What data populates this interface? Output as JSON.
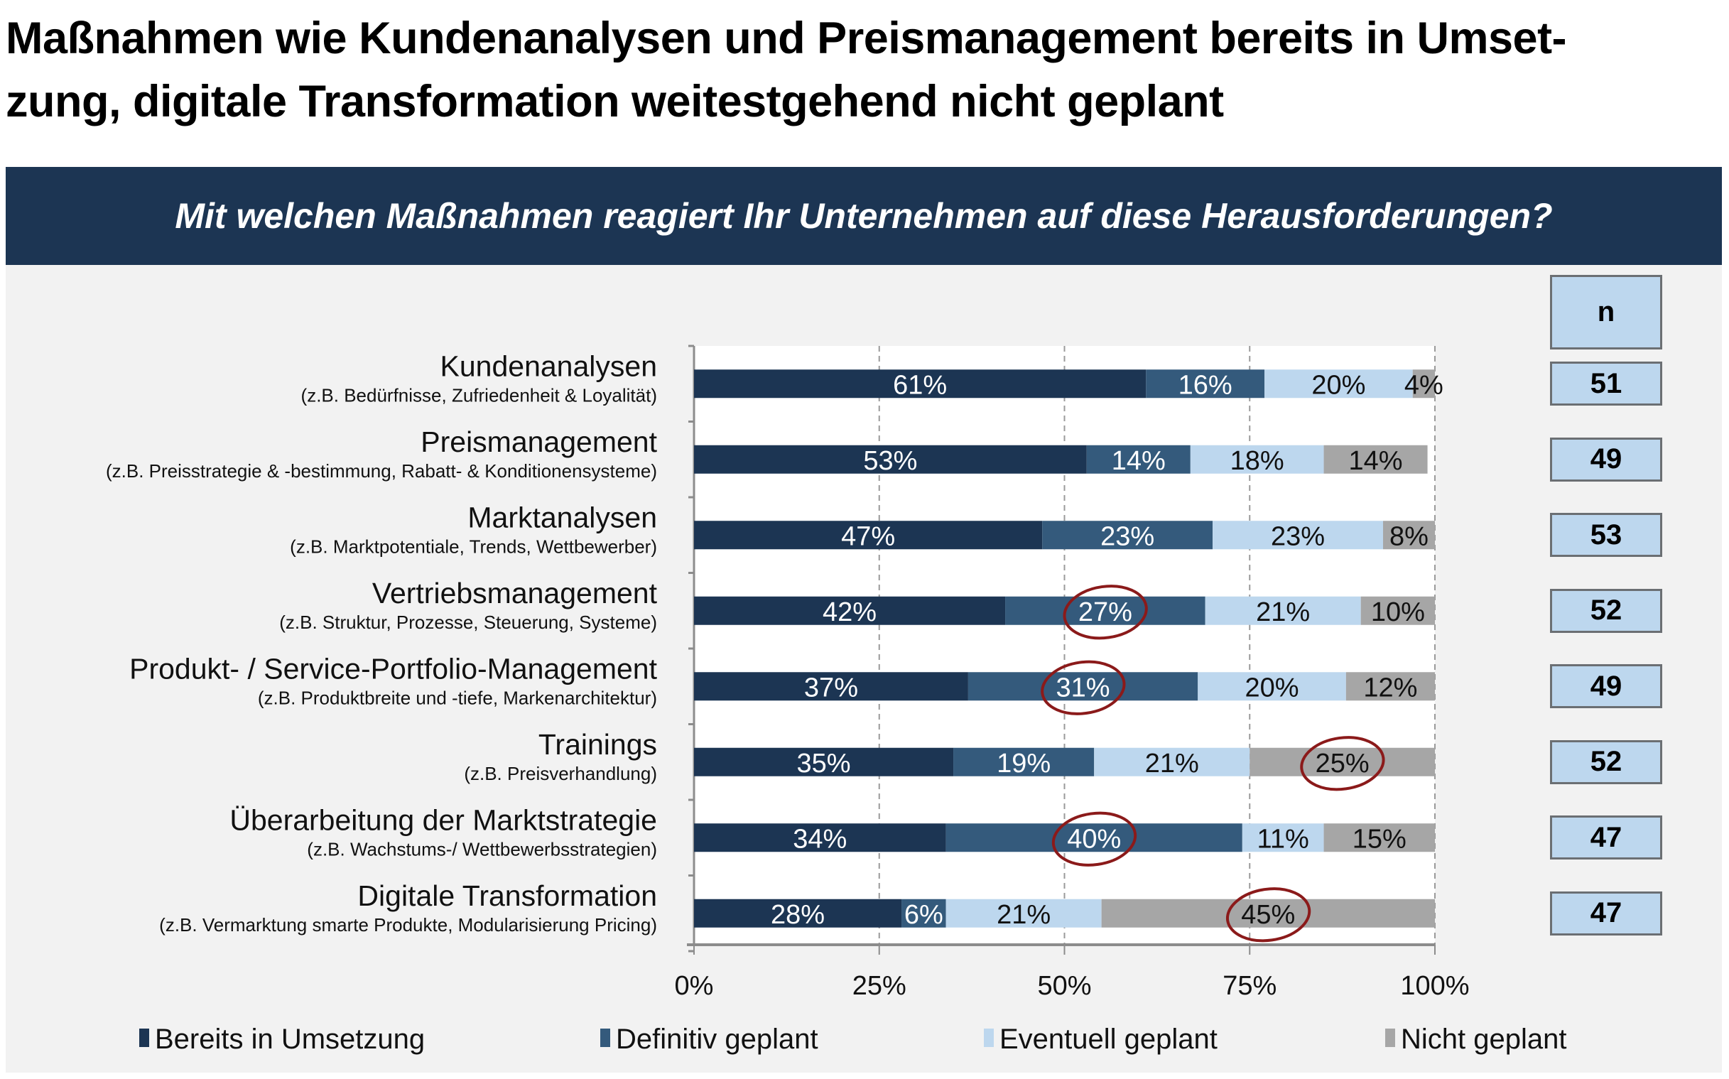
{
  "page": {
    "title_line1": "Maßnahmen wie Kundenanalysen und Preismanagement bereits in Umset-",
    "title_line2": "zung, digitale  Transformation weitestgehend nicht geplant",
    "question": "Mit welchen Maßnahmen reagiert Ihr Unternehmen auf diese  Herausforderungen?",
    "n_header": "n"
  },
  "colors": {
    "banner": "#1c3553",
    "bereits": "#1c3553",
    "definitiv": "#345a7c",
    "eventuell": "#bdd7ee",
    "nicht": "#a6a6a6",
    "highlight_circle": "#8b1a1a"
  },
  "chart_data": {
    "type": "bar",
    "orientation": "horizontal",
    "stacked": true,
    "title": "Mit welchen Maßnahmen reagiert Ihr Unternehmen auf diese Herausforderungen?",
    "xlabel": "",
    "ylabel": "",
    "xlim": [
      0,
      100
    ],
    "xticks": [
      "0%",
      "25%",
      "50%",
      "75%",
      "100%"
    ],
    "grid": "vertical dashed at 25% steps",
    "legend_position": "bottom",
    "categories": [
      {
        "label": "Kundenanalysen",
        "sub": "(z.B. Bedürfnisse, Zufriedenheit & Loyalität)",
        "n": 51
      },
      {
        "label": "Preismanagement",
        "sub": "(z.B. Preisstrategie & -bestimmung, Rabatt- & Konditionensysteme)",
        "n": 49
      },
      {
        "label": "Marktanalysen",
        "sub": "(z.B. Marktpotentiale, Trends, Wettbewerber)",
        "n": 53
      },
      {
        "label": "Vertriebsmanagement",
        "sub": "(z.B. Struktur, Prozesse, Steuerung, Systeme)",
        "n": 52
      },
      {
        "label": "Produkt- / Service-Portfolio-Management",
        "sub": "(z.B. Produktbreite und -tiefe, Markenarchitektur)",
        "n": 49
      },
      {
        "label": "Trainings",
        "sub": "(z.B. Preisverhandlung)",
        "n": 52
      },
      {
        "label": "Überarbeitung der Marktstrategie",
        "sub": "(z.B. Wachstums-/ Wettbewerbsstrategien)",
        "n": 47
      },
      {
        "label": "Digitale Transformation",
        "sub": "(z.B. Vermarktung smarte Produkte, Modularisierung Pricing)",
        "n": 47
      }
    ],
    "series": [
      {
        "name": "Bereits in Umsetzung",
        "key": "bereits",
        "values": [
          61,
          53,
          47,
          42,
          37,
          35,
          34,
          28
        ]
      },
      {
        "name": "Definitiv geplant",
        "key": "definitiv",
        "values": [
          16,
          14,
          23,
          27,
          31,
          19,
          40,
          6
        ]
      },
      {
        "name": "Eventuell geplant",
        "key": "eventuell",
        "values": [
          20,
          18,
          23,
          21,
          20,
          21,
          11,
          21
        ]
      },
      {
        "name": "Nicht geplant",
        "key": "nicht",
        "values": [
          4,
          14,
          8,
          10,
          12,
          25,
          15,
          45
        ]
      }
    ],
    "highlighted": [
      {
        "category_index": 3,
        "series_index": 1
      },
      {
        "category_index": 4,
        "series_index": 1
      },
      {
        "category_index": 5,
        "series_index": 3
      },
      {
        "category_index": 6,
        "series_index": 1
      },
      {
        "category_index": 7,
        "series_index": 3
      }
    ]
  }
}
